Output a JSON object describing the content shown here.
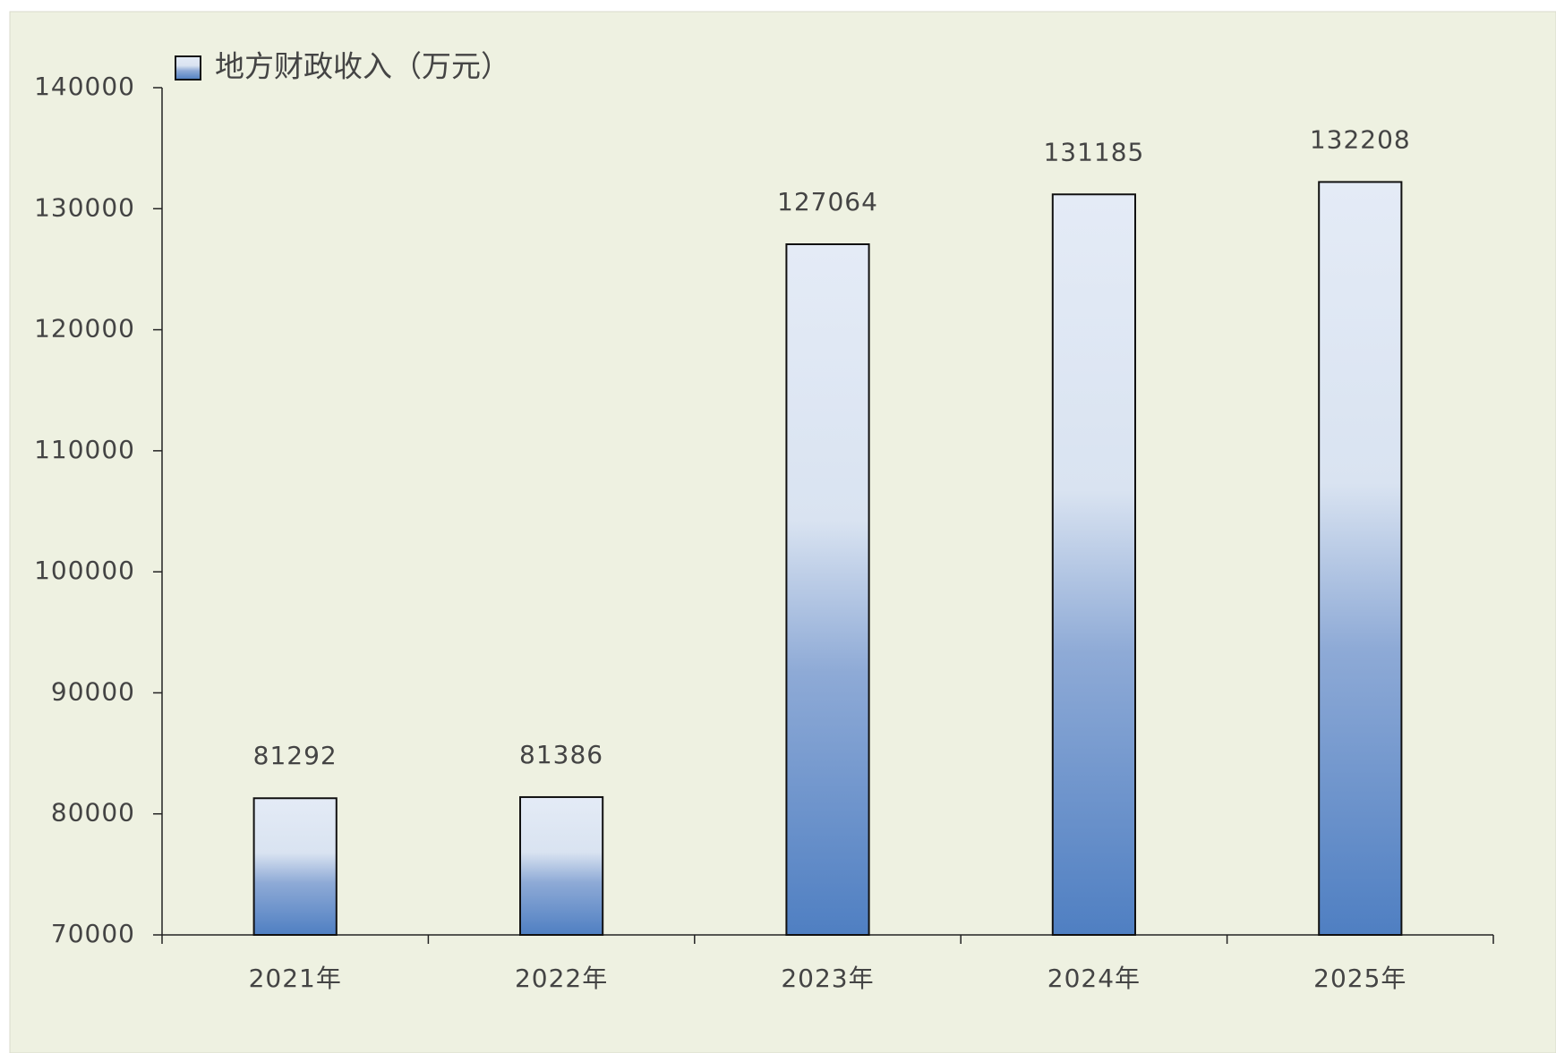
{
  "chart_data": {
    "type": "bar",
    "categories": [
      "2021年",
      "2022年",
      "2023年",
      "2024年",
      "2025年"
    ],
    "series": [
      {
        "name": "地方财政收入（万元）",
        "color": "#4f7fc2",
        "values": [
          81292,
          81386,
          127064,
          131185,
          132208
        ]
      }
    ],
    "ylim": [
      70000,
      140000
    ],
    "yticks": [
      70000,
      80000,
      90000,
      100000,
      110000,
      120000,
      130000,
      140000
    ],
    "legend": "top-left",
    "grid": false
  }
}
